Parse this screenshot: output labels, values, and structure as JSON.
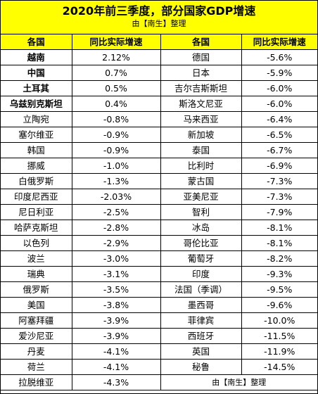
{
  "header": {
    "title": "2020年前三季度，部分国家GDP增速",
    "subtitle": "由【南生】整理"
  },
  "columns": [
    "各国",
    "同比实际增速",
    "各国",
    "同比实际增速"
  ],
  "rows": [
    {
      "c1": "越南",
      "v1": "2.12%",
      "c2": "德国",
      "v2": "-5.6%",
      "bold": true
    },
    {
      "c1": "中国",
      "v1": "0.7%",
      "c2": "日本",
      "v2": "-5.9%",
      "bold": true
    },
    {
      "c1": "土耳其",
      "v1": "0.5%",
      "c2": "吉尔吉斯斯坦",
      "v2": "-6.0%",
      "bold": true
    },
    {
      "c1": "乌兹别克斯坦",
      "v1": "0.4%",
      "c2": "斯洛文尼亚",
      "v2": "-6.0%",
      "bold": true
    },
    {
      "c1": "立陶宛",
      "v1": "-0.8%",
      "c2": "马来西亚",
      "v2": "-6.4%",
      "bold": false
    },
    {
      "c1": "塞尔维亚",
      "v1": "-0.9%",
      "c2": "新加坡",
      "v2": "-6.5%",
      "bold": false
    },
    {
      "c1": "韩国",
      "v1": "-0.9%",
      "c2": "泰国",
      "v2": "-6.7%",
      "bold": false
    },
    {
      "c1": "挪威",
      "v1": "-1.0%",
      "c2": "比利时",
      "v2": "-6.9%",
      "bold": false
    },
    {
      "c1": "白俄罗斯",
      "v1": "-1.3%",
      "c2": "蒙古国",
      "v2": "-7.3%",
      "bold": false
    },
    {
      "c1": "印度尼西亚",
      "v1": "-2.03%",
      "c2": "亚美尼亚",
      "v2": "-7.3%",
      "bold": false
    },
    {
      "c1": "尼日利亚",
      "v1": "-2.5%",
      "c2": "智利",
      "v2": "-7.9%",
      "bold": false
    },
    {
      "c1": "哈萨克斯坦",
      "v1": "-2.8%",
      "c2": "冰岛",
      "v2": "-8.1%",
      "bold": false
    },
    {
      "c1": "以色列",
      "v1": "-2.9%",
      "c2": "哥伦比亚",
      "v2": "-8.1%",
      "bold": false
    },
    {
      "c1": "波兰",
      "v1": "-3.0%",
      "c2": "葡萄牙",
      "v2": "-8.2%",
      "bold": false
    },
    {
      "c1": "瑞典",
      "v1": "-3.1%",
      "c2": "印度",
      "v2": "-9.3%",
      "bold": false
    },
    {
      "c1": "俄罗斯",
      "v1": "-3.5%",
      "c2": "法国（季调）",
      "v2": "-9.5%",
      "bold": false
    },
    {
      "c1": "美国",
      "v1": "-3.8%",
      "c2": "墨西哥",
      "v2": "-9.6%",
      "bold": false
    },
    {
      "c1": "阿塞拜疆",
      "v1": "-3.9%",
      "c2": "菲律宾",
      "v2": "-10.0%",
      "bold": false
    },
    {
      "c1": "爱沙尼亚",
      "v1": "-3.9%",
      "c2": "西班牙",
      "v2": "-11.5%",
      "bold": false
    },
    {
      "c1": "丹麦",
      "v1": "-4.1%",
      "c2": "英国",
      "v2": "-11.9%",
      "bold": false
    },
    {
      "c1": "荷兰",
      "v1": "-4.1%",
      "c2": "秘鲁",
      "v2": "-14.5%",
      "bold": false
    }
  ],
  "last_row": {
    "c1": "拉脱维亚",
    "v1": "-4.3%",
    "note": "由【南生】整理"
  },
  "colors": {
    "header_bg": "#ffff00",
    "border": "#000000"
  }
}
